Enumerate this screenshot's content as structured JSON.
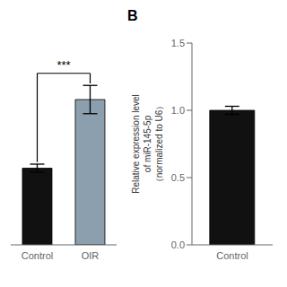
{
  "chart_data": [
    {
      "type": "bar",
      "categories": [
        "Control",
        "OIR"
      ],
      "values": [
        0.38,
        0.72
      ],
      "errors": [
        0.02,
        0.07
      ],
      "colors": [
        "#111111",
        "#8c9fae"
      ],
      "ylim": [
        0,
        1.0
      ],
      "tick_labels": "x",
      "annotation": "***"
    },
    {
      "type": "bar",
      "title": "B",
      "categories": [
        "Control"
      ],
      "values": [
        1.0
      ],
      "errors": [
        0.03
      ],
      "colors": [
        "#111111"
      ],
      "ylim": [
        0,
        1.5
      ],
      "yticks": [
        {
          "value": 0,
          "label": "0.0"
        },
        0.5,
        {
          "value": 1,
          "label": "1.0"
        },
        1.5
      ],
      "y_label": "Relative expression level\nof miR-145-5p\n（normalized to U6）"
    }
  ]
}
